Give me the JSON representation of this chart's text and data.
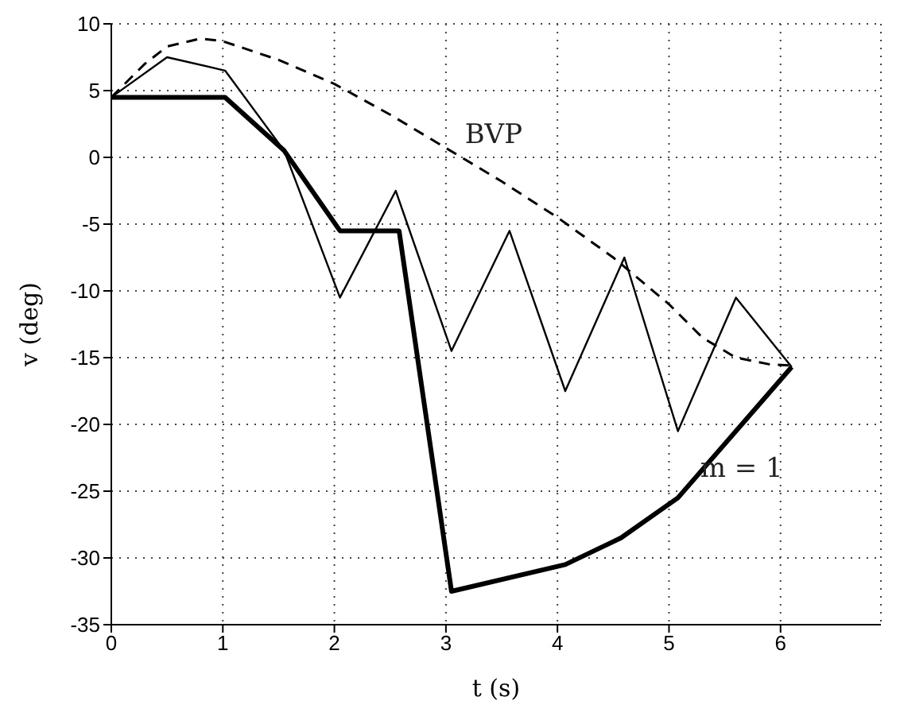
{
  "chart_data": {
    "type": "line",
    "xlabel": "t (s)",
    "ylabel": "v (deg)",
    "xlim": [
      0,
      6.9
    ],
    "xticks": [
      0,
      1,
      2,
      3,
      4,
      5,
      6
    ],
    "ylim": [
      -35,
      10
    ],
    "yticks": [
      -35,
      -30,
      -25,
      -20,
      -15,
      -10,
      -5,
      0,
      5,
      10
    ],
    "grid": true,
    "marker": "none",
    "series": [
      {
        "name": "BVP",
        "color": "#000000",
        "line_style": "dashed",
        "x": [
          0,
          0.3,
          0.5,
          0.8,
          1.0,
          1.5,
          2,
          2.5,
          3,
          3.5,
          4,
          4.5,
          5,
          5.3,
          5.6,
          5.9,
          6.1
        ],
        "values": [
          4.5,
          7,
          8.3,
          8.9,
          8.7,
          7.3,
          5.5,
          3.2,
          0.7,
          -1.8,
          -4.5,
          -7.5,
          -11,
          -13.5,
          -15,
          -15.5,
          -15.6
        ]
      },
      {
        "color": "#000000",
        "line_style": "solid",
        "x": [
          0,
          0.5,
          1.02,
          1.55,
          2.05,
          2.55,
          3.05,
          3.57,
          4.07,
          4.6,
          5.08,
          5.6,
          6.1
        ],
        "values": [
          4.5,
          7.5,
          6.5,
          0.5,
          -10.5,
          -2.5,
          -14.5,
          -5.5,
          -17.5,
          -7.5,
          -20.5,
          -10.5,
          -15.7
        ]
      },
      {
        "name": "m = 1",
        "color": "#000000",
        "line_style": "solid",
        "x": [
          0,
          1.02,
          1.55,
          2.05,
          2.58,
          3.05,
          4.07,
          4.57,
          5.08,
          6.1
        ],
        "values": [
          4.5,
          4.5,
          0.5,
          -5.5,
          -5.5,
          -32.5,
          -30.5,
          -28.5,
          -25.5,
          -15.7
        ]
      }
    ]
  }
}
